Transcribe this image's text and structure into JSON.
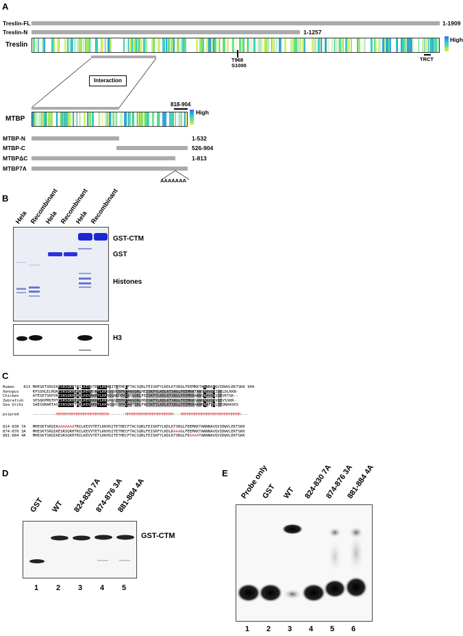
{
  "panelA": {
    "label": "A",
    "treslin_fl": {
      "name": "Treslin-FL",
      "range": "1-1909"
    },
    "treslin_n": {
      "name": "Treslin-N",
      "range": "1-1257"
    },
    "treslin_track": "Treslin",
    "treslin_sites": [
      "T968",
      "S1000"
    ],
    "trct": "TRCT",
    "high": "High",
    "interaction": "Interaction",
    "mtbp_region": "818-904",
    "mtbp_track": "MTBP",
    "mtbp_high": "High",
    "mtbp_constructs": [
      {
        "name": "MTBP-N",
        "range": "1-532"
      },
      {
        "name": "MTBP-C",
        "range": "526-904"
      },
      {
        "name": "MTBPΔC",
        "range": "1-813"
      },
      {
        "name": "MTBP7A",
        "range": ""
      }
    ],
    "mtbp7a_sub": "AAAAAAA"
  },
  "panelB": {
    "label": "B",
    "lanes": [
      "Hela",
      "Recombinant",
      "Hela",
      "Recombinant",
      "Hela",
      "Recombinant"
    ],
    "bands": [
      "GST-CTM",
      "GST",
      "Histones"
    ],
    "blot": "H3"
  },
  "panelC": {
    "label": "C",
    "species": [
      "Human",
      "Xenopus",
      "Chicken",
      "Zebrafish",
      "Sea Urchin"
    ],
    "start": "813",
    "end": "904",
    "seqs": [
      "MHESKTSRQIKESRSQKHTRILKEVVTETLKKHSITETHECFTACSQRLFEISKFYLKDLKTSRGLFEEMKKTANNNAVQVIDWVLEKTSKK",
      "KPSSHLELRQKESRSQKHERHLKEVNQKTLKKQSGVEEPHCAASQRLHEISKFYLKDLKTSRGLFEEMKKTANSNAVQVIDELDLKKN-",
      "ATESETSKPVKESRSQKHERHLKEVNKKTLKKQSGAEDPHCASSQRLFEISKFYLKDLKTSRGLFEEMKKAANSNAVQVIDEVKTGK--",
      "SPSQKPMQTHTESRSQKHERHLKEVNKKTLKKGRGSEEPHCAASQRLHDISKFYLKDLKTSRGLFEEMKKSANNNAVQVVDEVSSKR-",
      "SAESQRARTASESRSQKHTRHLKEVNKKTLKKAQGDSEPHCAATQRLFNISKFYLKDLKTSRGLFEEMKKAANNNAFQVLDEQNAASKS"
    ],
    "psipred": "psipred",
    "psipred_seq": "----------HHHHHHHHHHHHHHHHHHHHHHH-------HHHHHHHHHHHHHHHHHHHHH---HHHHHHHHHHHHHHHHHHHHHHHHHH---",
    "mutants": [
      {
        "name": "824-830 7A",
        "pre": "MHESKTSRQIK",
        "mut": "AAAAAAA",
        "post": "TRILKEVVTETLKKHSITETHECFTACSQRLFEISKFYLKDLKTSRGLFEEMKKTANNNAVQVIDWVLEKTSKK"
      },
      {
        "name": "874-876 3A",
        "pre": "MHESKTSRQIKESRSQKHTRILKEVVTETLKKHSITETHECFTACSQRLFEISKFYLKDLK",
        "mut": "AAA",
        "post": "GLFEEMKKTANNNAVQVIDWVLEKTSKK"
      },
      {
        "name": "881-884 4A",
        "pre": "MHESKTSRQIKESRSQKHTRILKEVVTETLKKHSITETHECFTACSQRLFEISKFYLKDLKTSRGLFE",
        "mut": "AAAA",
        "post": "TANNNAVQVIDWVLEKTSKK"
      }
    ]
  },
  "panelD": {
    "label": "D",
    "lanes": [
      "GST",
      "WT",
      "824-830 7A",
      "874-876 3A",
      "881-884 4A"
    ],
    "numbers": [
      "1",
      "2",
      "3",
      "4",
      "5"
    ],
    "band": "GST-CTM"
  },
  "panelE": {
    "label": "E",
    "lanes": [
      "Probe only",
      "GST",
      "WT",
      "824-830 7A",
      "874-876 3A",
      "881-884 4A"
    ],
    "numbers": [
      "1",
      "2",
      "3",
      "4",
      "5",
      "6"
    ]
  }
}
